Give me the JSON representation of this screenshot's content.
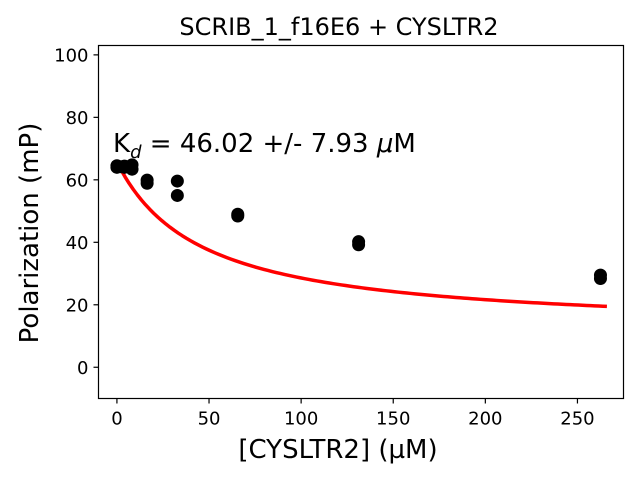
{
  "chart_data": {
    "type": "scatter",
    "title": "SCRIB_1_f16E6 + CYSLTR2",
    "xlabel": "[CYSLTR2] (µM)",
    "ylabel": "Polarization (mP)",
    "xlim": [
      -10,
      275
    ],
    "ylim": [
      -10,
      103
    ],
    "xticks": [
      0,
      50,
      100,
      150,
      200,
      250
    ],
    "yticks": [
      0,
      20,
      40,
      60,
      80,
      100
    ],
    "grid": false,
    "annotation": {
      "k_symbol": "K",
      "k_subscript": "d",
      "value_text": " = 46.02 +/- 7.93 ",
      "unit_mu": "μ",
      "unit_rest": "M"
    },
    "series": [
      {
        "type": "scatter",
        "color": "#000000",
        "points": [
          {
            "x": 0,
            "y": 64.5
          },
          {
            "x": 0,
            "y": 64.0
          },
          {
            "x": 2.1,
            "y": 64.2
          },
          {
            "x": 4.1,
            "y": 64.0
          },
          {
            "x": 4.1,
            "y": 64.4
          },
          {
            "x": 8.2,
            "y": 64.8
          },
          {
            "x": 8.2,
            "y": 63.4
          },
          {
            "x": 16.4,
            "y": 59.9
          },
          {
            "x": 16.4,
            "y": 58.9
          },
          {
            "x": 32.8,
            "y": 59.6
          },
          {
            "x": 32.8,
            "y": 55.0
          },
          {
            "x": 65.6,
            "y": 49.0
          },
          {
            "x": 65.6,
            "y": 48.4
          },
          {
            "x": 131.2,
            "y": 40.2
          },
          {
            "x": 131.2,
            "y": 39.2
          },
          {
            "x": 262.5,
            "y": 29.5
          },
          {
            "x": 262.5,
            "y": 28.4
          }
        ]
      },
      {
        "type": "line",
        "color": "#ff0000",
        "fit": {
          "model": "one-site binding",
          "x_start": 0,
          "x_end": 266,
          "top": 65.7,
          "bottom": 11.5,
          "kd": 46.02
        }
      }
    ]
  }
}
